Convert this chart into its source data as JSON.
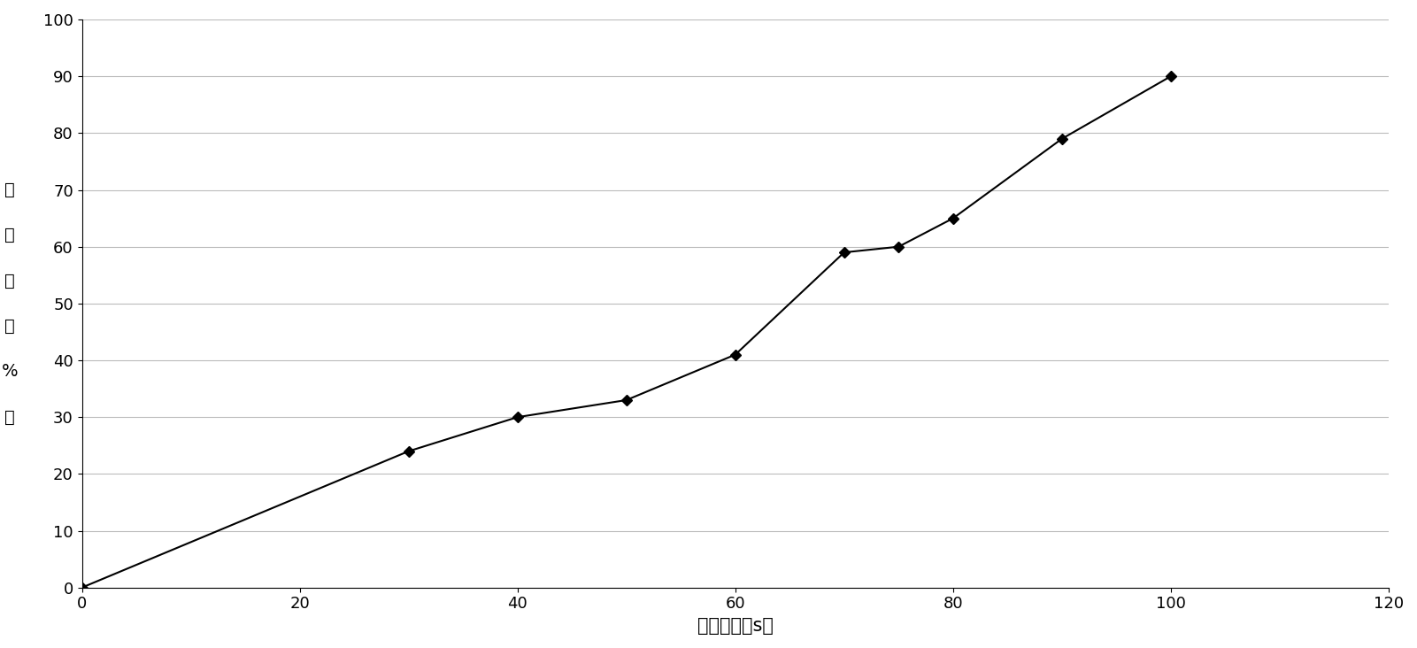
{
  "x": [
    0,
    30,
    40,
    50,
    60,
    70,
    75,
    80,
    90,
    100
  ],
  "y": [
    0,
    24,
    30,
    33,
    41,
    59,
    60,
    65,
    79,
    90
  ],
  "xlim": [
    0,
    120
  ],
  "ylim": [
    0,
    100
  ],
  "xticks": [
    0,
    20,
    40,
    60,
    80,
    100,
    120
  ],
  "yticks": [
    0,
    10,
    20,
    30,
    40,
    50,
    60,
    70,
    80,
    90,
    100
  ],
  "xlabel": "辐照时间（s）",
  "ylabel_chars": [
    "致",
    "死",
    "率",
    "（",
    "%",
    "）"
  ],
  "line_color": "#000000",
  "marker": "D",
  "marker_size": 6,
  "marker_color": "#000000",
  "linewidth": 1.5,
  "grid_color": "#bbbbbb",
  "background_color": "#ffffff",
  "xlabel_fontsize": 15,
  "ylabel_fontsize": 14,
  "tick_fontsize": 13
}
